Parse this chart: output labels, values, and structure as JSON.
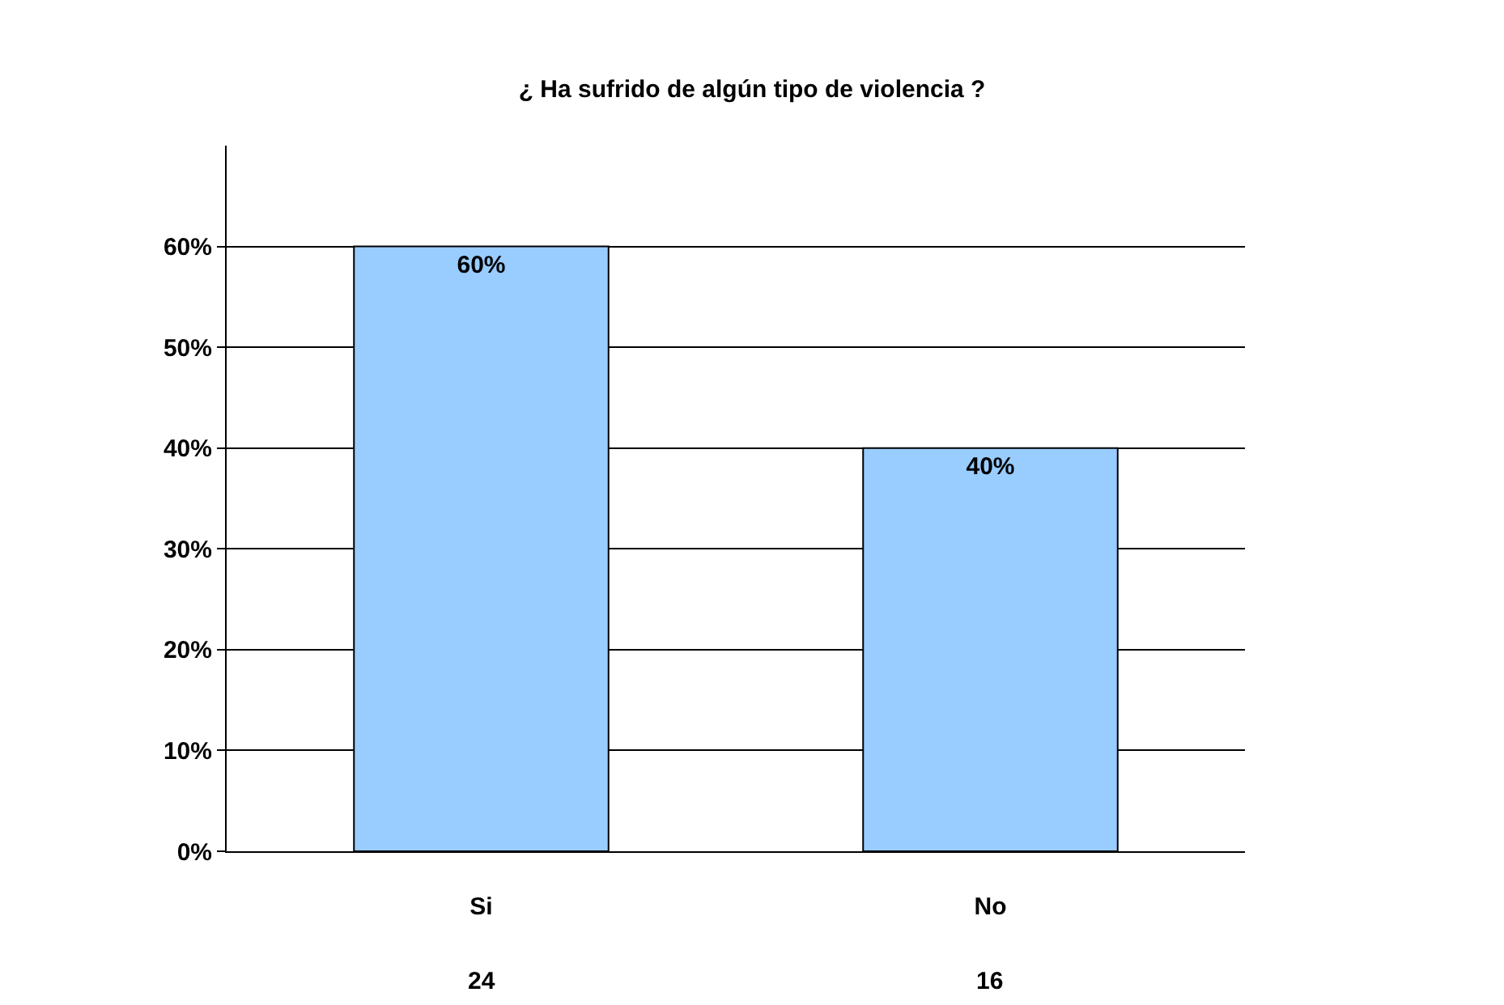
{
  "chart_data": {
    "type": "bar",
    "title": "¿ Ha sufrido de algún tipo de violencia ?",
    "categories": [
      "Si",
      "No"
    ],
    "values": [
      60,
      40
    ],
    "value_labels": [
      "60%",
      "40%"
    ],
    "color": "#99ccff",
    "ylim": [
      0,
      70
    ],
    "yticks": [
      {
        "value": 0,
        "label": "0%"
      },
      {
        "value": 10,
        "label": "10%"
      },
      {
        "value": 20,
        "label": "20%"
      },
      {
        "value": 30,
        "label": "30%"
      },
      {
        "value": 40,
        "label": "40%"
      },
      {
        "value": 50,
        "label": "50%"
      },
      {
        "value": 60,
        "label": "60%"
      }
    ],
    "grid": "y",
    "annotations": [
      "24",
      "16"
    ]
  }
}
